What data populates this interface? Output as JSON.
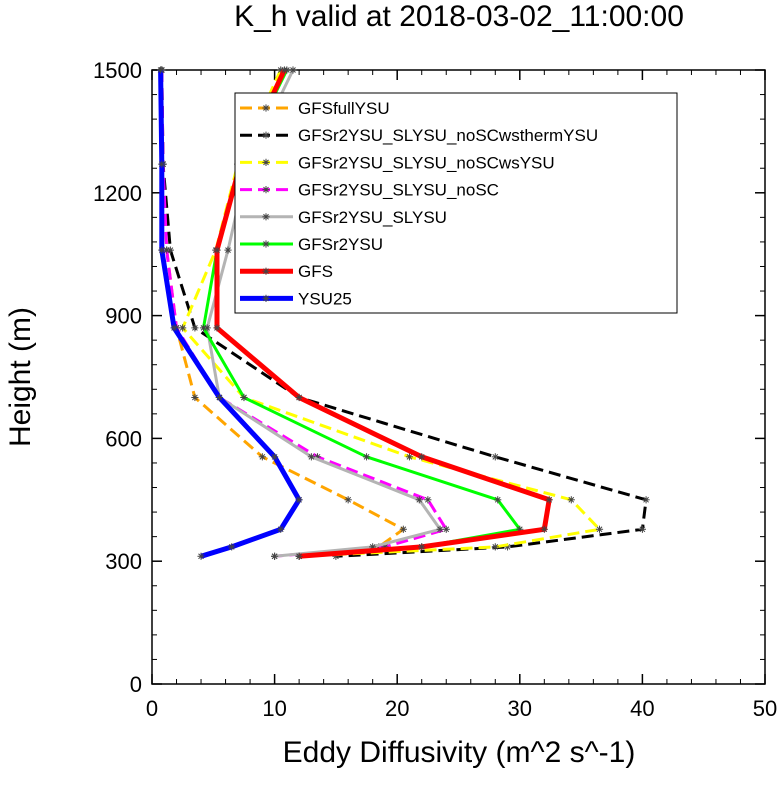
{
  "chart_data": {
    "type": "line",
    "title": "K_h valid at 2018-03-02_11:00:00",
    "xlabel": "Eddy Diffusivity (m^2 s^-1)",
    "ylabel": "Height (m)",
    "xlim": [
      0,
      50
    ],
    "ylim": [
      0,
      1500
    ],
    "x_ticks": [
      0,
      10,
      20,
      30,
      40,
      50
    ],
    "y_ticks": [
      0,
      300,
      600,
      900,
      1200,
      1500
    ],
    "grid": false,
    "legend_position": "top-center",
    "series": [
      {
        "name": "GFSfullYSU",
        "color": "#ffa500",
        "dash": "dashed",
        "points": [
          [
            0.8,
            1500
          ],
          [
            0.9,
            1270
          ],
          [
            1.2,
            1060
          ],
          [
            2.0,
            870
          ],
          [
            3.5,
            700
          ],
          [
            9.0,
            555
          ],
          [
            16.0,
            450
          ],
          [
            20.5,
            378
          ],
          [
            18.5,
            335
          ],
          [
            12.0,
            312
          ]
        ]
      },
      {
        "name": "GFSr2YSU_SLYSU_noSCwsthermYSU",
        "color": "#000000",
        "dash": "dashed",
        "points": [
          [
            0.8,
            1500
          ],
          [
            0.9,
            1270
          ],
          [
            1.5,
            1060
          ],
          [
            3.5,
            870
          ],
          [
            12.0,
            700
          ],
          [
            28.0,
            555
          ],
          [
            40.3,
            450
          ],
          [
            40.0,
            378
          ],
          [
            29.0,
            335
          ],
          [
            15.0,
            312
          ]
        ]
      },
      {
        "name": "GFSr2YSU_SLYSU_noSCwsYSU",
        "color": "#ffff00",
        "dash": "dashed",
        "points": [
          [
            10.5,
            1500
          ],
          [
            7.0,
            1270
          ],
          [
            5.2,
            1060
          ],
          [
            2.5,
            870
          ],
          [
            7.5,
            700
          ],
          [
            21.0,
            555
          ],
          [
            34.2,
            450
          ],
          [
            36.5,
            378
          ],
          [
            28.0,
            335
          ],
          [
            12.0,
            312
          ]
        ]
      },
      {
        "name": "GFSr2YSU_SLYSU_noSC",
        "color": "#ff00ff",
        "dash": "dashed",
        "points": [
          [
            0.8,
            1500
          ],
          [
            0.9,
            1270
          ],
          [
            1.2,
            1060
          ],
          [
            2.0,
            870
          ],
          [
            5.5,
            700
          ],
          [
            13.5,
            555
          ],
          [
            22.5,
            450
          ],
          [
            24.0,
            378
          ],
          [
            19.0,
            335
          ],
          [
            10.0,
            312
          ]
        ]
      },
      {
        "name": "GFSr2YSU_SLYSU",
        "color": "#b4b4b4",
        "dash": "solid",
        "points": [
          [
            11.5,
            1500
          ],
          [
            7.8,
            1270
          ],
          [
            6.2,
            1060
          ],
          [
            4.5,
            870
          ],
          [
            5.5,
            700
          ],
          [
            13.0,
            555
          ],
          [
            21.8,
            450
          ],
          [
            23.5,
            378
          ],
          [
            18.0,
            335
          ],
          [
            10.0,
            312
          ]
        ]
      },
      {
        "name": "GFSr2YSU",
        "color": "#00ff00",
        "dash": "solid",
        "points": [
          [
            11.0,
            1500
          ],
          [
            7.2,
            1270
          ],
          [
            5.3,
            1060
          ],
          [
            4.2,
            870
          ],
          [
            7.5,
            700
          ],
          [
            17.5,
            555
          ],
          [
            28.2,
            450
          ],
          [
            30.0,
            378
          ],
          [
            22.0,
            335
          ],
          [
            12.0,
            312
          ]
        ]
      },
      {
        "name": "GFS",
        "color": "#ff0000",
        "dash": "solid",
        "width": 5,
        "points": [
          [
            10.8,
            1500
          ],
          [
            7.2,
            1270
          ],
          [
            5.3,
            1060
          ],
          [
            5.3,
            870
          ],
          [
            12.0,
            700
          ],
          [
            22.0,
            555
          ],
          [
            32.4,
            450
          ],
          [
            32.0,
            378
          ],
          [
            22.0,
            335
          ],
          [
            12.0,
            312
          ]
        ]
      },
      {
        "name": "YSU25",
        "color": "#0000ff",
        "dash": "solid",
        "width": 5,
        "points": [
          [
            0.7,
            1500
          ],
          [
            0.8,
            1270
          ],
          [
            0.8,
            1060
          ],
          [
            1.8,
            870
          ],
          [
            5.5,
            700
          ],
          [
            10.0,
            555
          ],
          [
            12.0,
            450
          ],
          [
            10.5,
            378
          ],
          [
            6.5,
            335
          ],
          [
            4.0,
            312
          ]
        ]
      }
    ]
  }
}
